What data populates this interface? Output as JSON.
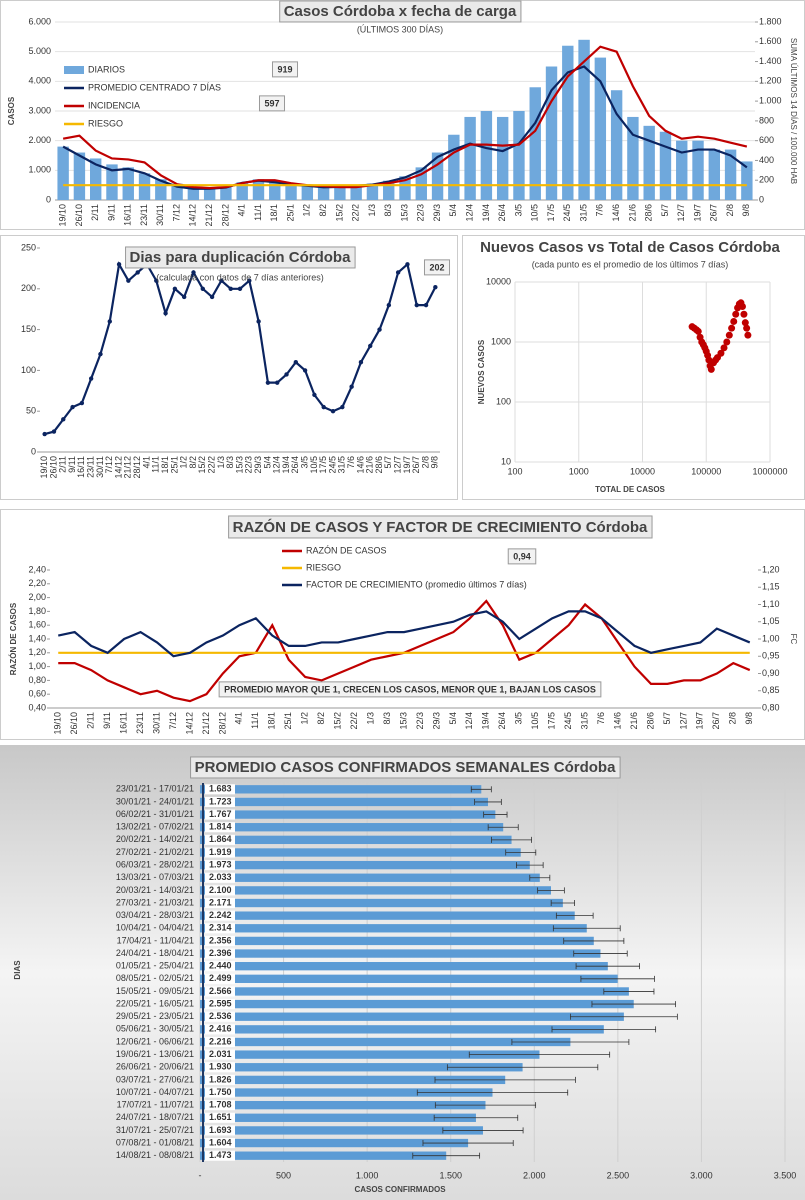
{
  "chart_data": [
    {
      "type": "bar",
      "title": "Casos Córdoba x fecha de carga",
      "subtitle": "(ÚLTIMOS 300 DÍAS)",
      "ylabel": "CASOS",
      "y2label": "SUMA ÚLTIMOS 14 DÍAS / 100.000 HAB",
      "categories": [
        "19/10",
        "26/10",
        "2/11",
        "9/11",
        "16/11",
        "23/11",
        "30/11",
        "7/12",
        "14/12",
        "21/12",
        "28/12",
        "4/1",
        "11/1",
        "18/1",
        "25/1",
        "1/2",
        "8/2",
        "15/2",
        "22/2",
        "1/3",
        "8/3",
        "15/3",
        "22/3",
        "29/3",
        "5/4",
        "12/4",
        "19/4",
        "26/4",
        "3/5",
        "10/5",
        "17/5",
        "24/5",
        "31/5",
        "7/6",
        "14/6",
        "21/6",
        "28/6",
        "5/7",
        "12/7",
        "19/7",
        "26/7",
        "2/8",
        "9/8"
      ],
      "series": [
        {
          "name": "DIARIOS",
          "type": "bar",
          "color": "#6fa8dc",
          "values": [
            1800,
            1600,
            1400,
            1200,
            1100,
            900,
            700,
            550,
            450,
            400,
            450,
            600,
            700,
            650,
            550,
            500,
            450,
            450,
            500,
            550,
            650,
            800,
            1100,
            1600,
            2200,
            2800,
            3000,
            2800,
            3000,
            3800,
            4500,
            5200,
            5400,
            4800,
            3700,
            2800,
            2500,
            2300,
            2000,
            2000,
            1700,
            1700,
            1300
          ]
        },
        {
          "name": "PROMEDIO CENTRADO 7 DÍAS",
          "type": "line",
          "color": "#0b2460",
          "values": [
            1800,
            1500,
            1200,
            1000,
            1050,
            900,
            650,
            450,
            380,
            380,
            420,
            580,
            650,
            600,
            520,
            480,
            430,
            440,
            480,
            520,
            620,
            760,
            1000,
            1450,
            1700,
            1900,
            1750,
            1650,
            1900,
            2600,
            3700,
            4300,
            4500,
            4000,
            2900,
            2200,
            2000,
            1800,
            1600,
            1700,
            1700,
            1500,
            1100
          ]
        },
        {
          "name": "INCIDENCIA",
          "type": "line",
          "axis": "y2",
          "color": "#c00000",
          "values": [
            620,
            650,
            500,
            420,
            410,
            380,
            250,
            160,
            130,
            120,
            130,
            170,
            200,
            200,
            170,
            150,
            140,
            130,
            130,
            150,
            170,
            200,
            260,
            360,
            480,
            560,
            560,
            550,
            560,
            700,
            1000,
            1250,
            1400,
            1550,
            1500,
            1150,
            850,
            700,
            620,
            640,
            620,
            580,
            540
          ]
        },
        {
          "name": "RIESGO",
          "type": "line",
          "color": "#f5b800",
          "values": [
            500,
            500,
            500,
            500,
            500,
            500,
            500,
            500,
            500,
            500,
            500,
            500,
            500,
            500,
            500,
            500,
            500,
            500,
            500,
            500,
            500,
            500,
            500,
            500,
            500,
            500,
            500,
            500,
            500,
            500,
            500,
            500,
            500,
            500,
            500,
            500,
            500,
            500,
            500,
            500,
            500,
            500,
            500
          ]
        }
      ],
      "ylim": [
        0,
        6000
      ],
      "yticks": [
        0,
        {
          "value": 1000,
          "label": "1.000"
        },
        {
          "value": 2000,
          "label": "2.000"
        },
        {
          "value": 3000,
          "label": "3.000"
        },
        {
          "value": 4000,
          "label": "4.000"
        },
        {
          "value": 5000,
          "label": "5.000"
        },
        {
          "value": 6000,
          "label": "6.000"
        }
      ],
      "y2lim": [
        0,
        1800
      ],
      "y2ticks": [
        0,
        200,
        400,
        600,
        800,
        {
          "value": 1000,
          "label": "1.000"
        },
        {
          "value": 1200,
          "label": "1.200"
        },
        {
          "value": 1400,
          "label": "1.400"
        },
        {
          "value": 1600,
          "label": "1.600"
        },
        {
          "value": 1800,
          "label": "1.800"
        }
      ],
      "grid": true,
      "legend": "upper left",
      "annotations": [
        "919",
        "597"
      ]
    },
    {
      "type": "line",
      "title": "Dias para duplicación Córdoba",
      "subtitle": "(calculada con datos de 7 días anteriores)",
      "categories": [
        "19/10",
        "26/10",
        "2/11",
        "9/11",
        "16/11",
        "23/11",
        "30/11",
        "7/12",
        "14/12",
        "21/12",
        "28/12",
        "4/1",
        "11/1",
        "18/1",
        "25/1",
        "1/2",
        "8/2",
        "15/2",
        "22/2",
        "1/3",
        "8/3",
        "15/3",
        "22/3",
        "29/3",
        "5/4",
        "12/4",
        "19/4",
        "26/4",
        "3/5",
        "10/5",
        "17/5",
        "24/5",
        "31/5",
        "7/6",
        "14/6",
        "21/6",
        "28/6",
        "5/7",
        "12/7",
        "19/7",
        "26/7",
        "2/8",
        "9/8"
      ],
      "series": [
        {
          "type": "line",
          "markers": true,
          "color": "#0b2460",
          "values": [
            22,
            25,
            40,
            55,
            60,
            90,
            120,
            160,
            230,
            210,
            220,
            230,
            210,
            170,
            200,
            190,
            220,
            200,
            190,
            210,
            200,
            200,
            210,
            160,
            85,
            85,
            95,
            110,
            100,
            70,
            55,
            50,
            55,
            80,
            110,
            130,
            150,
            180,
            220,
            230,
            180,
            180,
            202
          ]
        }
      ],
      "ylim": [
        0,
        250
      ],
      "yticks": [
        0,
        50,
        100,
        150,
        200,
        250
      ],
      "grid": false,
      "annotations": [
        "202"
      ]
    },
    {
      "type": "scatter",
      "title": "Nuevos Casos vs Total de Casos Córdoba",
      "subtitle": "(cada punto es el promedio de los últimos 7 días)",
      "xlabel": "TOTAL DE CASOS",
      "ylabel": "NUEVOS CASOS",
      "xlog": true,
      "ylog": true,
      "color": "#c00000",
      "x": [
        60000,
        65000,
        70000,
        75000,
        80000,
        85000,
        90000,
        95000,
        100000,
        105000,
        110000,
        115000,
        120000,
        130000,
        140000,
        150000,
        170000,
        190000,
        210000,
        230000,
        250000,
        270000,
        290000,
        310000,
        330000,
        350000,
        370000,
        390000,
        410000,
        430000,
        450000
      ],
      "values": [
        1800,
        1700,
        1600,
        1500,
        1200,
        1000,
        900,
        800,
        700,
        600,
        500,
        400,
        350,
        450,
        500,
        550,
        650,
        800,
        1000,
        1300,
        1700,
        2200,
        2900,
        3700,
        4300,
        4500,
        3900,
        2900,
        2100,
        1700,
        1300
      ],
      "xlim": [
        100,
        1000000
      ],
      "xticks": [
        100,
        1000,
        10000,
        100000,
        1000000
      ],
      "ylim": [
        10,
        10000
      ],
      "yticks": [
        10,
        100,
        1000,
        10000
      ],
      "grid": true
    },
    {
      "type": "line",
      "title": "RAZÓN DE CASOS Y FACTOR DE CRECIMIENTO Córdoba",
      "ylabel": "RAZÓN DE CASOS",
      "y2label": "FC",
      "categories": [
        "19/10",
        "26/10",
        "2/11",
        "9/11",
        "16/11",
        "23/11",
        "30/11",
        "7/12",
        "14/12",
        "21/12",
        "28/12",
        "4/1",
        "11/1",
        "18/1",
        "25/1",
        "1/2",
        "8/2",
        "15/2",
        "22/2",
        "1/3",
        "8/3",
        "15/3",
        "22/3",
        "29/3",
        "5/4",
        "12/4",
        "19/4",
        "26/4",
        "3/5",
        "10/5",
        "17/5",
        "24/5",
        "31/5",
        "7/6",
        "14/6",
        "21/6",
        "28/6",
        "5/7",
        "12/7",
        "19/7",
        "26/7",
        "2/8",
        "9/8"
      ],
      "series": [
        {
          "name": "RAZÓN DE CASOS",
          "type": "line",
          "color": "#c00000",
          "values": [
            1.05,
            1.05,
            0.95,
            0.8,
            0.7,
            0.6,
            0.65,
            0.55,
            0.5,
            0.6,
            0.9,
            1.15,
            1.2,
            1.6,
            1.1,
            0.85,
            0.8,
            0.9,
            1.0,
            1.1,
            1.15,
            1.2,
            1.3,
            1.4,
            1.5,
            1.7,
            1.95,
            1.6,
            1.1,
            1.2,
            1.4,
            1.6,
            1.9,
            1.7,
            1.35,
            1.0,
            0.75,
            0.75,
            0.8,
            0.8,
            0.9,
            1.05,
            0.95
          ]
        },
        {
          "name": "RIESGO",
          "type": "line",
          "color": "#f5b800",
          "values": [
            1.2,
            1.2,
            1.2,
            1.2,
            1.2,
            1.2,
            1.2,
            1.2,
            1.2,
            1.2,
            1.2,
            1.2,
            1.2,
            1.2,
            1.2,
            1.2,
            1.2,
            1.2,
            1.2,
            1.2,
            1.2,
            1.2,
            1.2,
            1.2,
            1.2,
            1.2,
            1.2,
            1.2,
            1.2,
            1.2,
            1.2,
            1.2,
            1.2,
            1.2,
            1.2,
            1.2,
            1.2,
            1.2,
            1.2,
            1.2,
            1.2,
            1.2,
            1.2
          ]
        },
        {
          "name": "FACTOR DE CRECIMIENTO (promedio últimos 7 días)",
          "type": "line",
          "axis": "y2",
          "color": "#0b2460",
          "values": [
            1.01,
            1.02,
            0.98,
            0.96,
            1.0,
            1.02,
            0.99,
            0.95,
            0.96,
            0.99,
            1.01,
            1.04,
            1.06,
            1.01,
            0.98,
            0.98,
            0.99,
            0.99,
            1.0,
            1.01,
            1.02,
            1.02,
            1.03,
            1.04,
            1.05,
            1.07,
            1.08,
            1.05,
            1.0,
            1.03,
            1.06,
            1.08,
            1.08,
            1.06,
            1.02,
            0.98,
            0.96,
            0.97,
            0.98,
            0.99,
            1.03,
            1.01,
            0.99
          ]
        }
      ],
      "ylim": [
        0.4,
        2.4
      ],
      "yticks": [
        {
          "value": 0.4,
          "label": "0,40"
        },
        {
          "value": 0.6,
          "label": "0,60"
        },
        {
          "value": 0.8,
          "label": "0,80"
        },
        {
          "value": 1.0,
          "label": "1,00"
        },
        {
          "value": 1.2,
          "label": "1,20"
        },
        {
          "value": 1.4,
          "label": "1,40"
        },
        {
          "value": 1.6,
          "label": "1,60"
        },
        {
          "value": 1.8,
          "label": "1,80"
        },
        {
          "value": 2.0,
          "label": "2,00"
        },
        {
          "value": 2.2,
          "label": "2,20"
        },
        {
          "value": 2.4,
          "label": "2,40"
        }
      ],
      "y2lim": [
        0.8,
        1.2
      ],
      "y2ticks": [
        {
          "value": 0.8,
          "label": "0,80"
        },
        {
          "value": 0.85,
          "label": "0,85"
        },
        {
          "value": 0.9,
          "label": "0,90"
        },
        {
          "value": 0.95,
          "label": "0,95"
        },
        {
          "value": 1.0,
          "label": "1,00"
        },
        {
          "value": 1.05,
          "label": "1,05"
        },
        {
          "value": 1.1,
          "label": "1,10"
        },
        {
          "value": 1.15,
          "label": "1,15"
        },
        {
          "value": 1.2,
          "label": "1,20"
        }
      ],
      "grid": false,
      "legend": "upper center",
      "annotations": [
        "0,94",
        "PROMEDIO MAYOR QUE 1, CRECEN LOS CASOS, MENOR QUE 1, BAJAN LOS CASOS"
      ]
    },
    {
      "type": "hbar",
      "title": "PROMEDIO CASOS CONFIRMADOS SEMANALES Córdoba",
      "xlabel": "CASOS CONFIRMADOS",
      "ylabel": "DIAS",
      "color": "#5b9bd5",
      "categories": [
        "23/01/21 - 17/01/21",
        "30/01/21 - 24/01/21",
        "06/02/21 - 31/01/21",
        "13/02/21 - 07/02/21",
        "20/02/21 - 14/02/21",
        "27/02/21 - 21/02/21",
        "06/03/21 - 28/02/21",
        "13/03/21 - 07/03/21",
        "20/03/21 - 14/03/21",
        "27/03/21 - 21/03/21",
        "03/04/21 - 28/03/21",
        "10/04/21 - 04/04/21",
        "17/04/21 - 11/04/21",
        "24/04/21 - 18/04/21",
        "01/05/21 - 25/04/21",
        "08/05/21 - 02/05/21",
        "15/05/21 - 09/05/21",
        "22/05/21 - 16/05/21",
        "29/05/21 - 23/05/21",
        "05/06/21 - 30/05/21",
        "12/06/21 - 06/06/21",
        "19/06/21 - 13/06/21",
        "26/06/21 - 20/06/21",
        "03/07/21 - 27/06/21",
        "10/07/21 - 04/07/21",
        "17/07/21 - 11/07/21",
        "24/07/21 - 18/07/21",
        "31/07/21 - 25/07/21",
        "07/08/21 - 01/08/21",
        "14/08/21 - 08/08/21"
      ],
      "values": [
        1683,
        1723,
        1767,
        1814,
        1864,
        1919,
        1973,
        2033,
        2100,
        2171,
        2242,
        2314,
        2356,
        2396,
        2440,
        2499,
        2566,
        2595,
        2536,
        2416,
        2216,
        2031,
        1930,
        1826,
        1750,
        1708,
        1651,
        1693,
        1604,
        1473
      ],
      "value_labels": [
        "1.683",
        "1.723",
        "1.767",
        "1.814",
        "1.864",
        "1.919",
        "1.973",
        "2.033",
        "2.100",
        "2.171",
        "2.242",
        "2.314",
        "2.356",
        "2.396",
        "2.440",
        "2.499",
        "2.566",
        "2.595",
        "2.536",
        "2.416",
        "2.216",
        "2.031",
        "1.930",
        "1.826",
        "1.750",
        "1.708",
        "1.651",
        "1.693",
        "1.604",
        "1.473"
      ],
      "errors": [
        60,
        80,
        70,
        90,
        120,
        90,
        80,
        60,
        80,
        70,
        110,
        200,
        180,
        160,
        190,
        220,
        150,
        250,
        320,
        310,
        350,
        420,
        450,
        420,
        450,
        300,
        250,
        240,
        270,
        200
      ],
      "xlim": [
        0,
        3500
      ],
      "xticks": [
        {
          "value": 0,
          "label": "-"
        },
        500,
        {
          "value": 1000,
          "label": "1.000"
        },
        {
          "value": 1500,
          "label": "1.500"
        },
        {
          "value": 2000,
          "label": "2.000"
        },
        {
          "value": 2500,
          "label": "2.500"
        },
        {
          "value": 3000,
          "label": "3.000"
        },
        {
          "value": 3500,
          "label": "3.500"
        }
      ],
      "grid": true
    }
  ]
}
